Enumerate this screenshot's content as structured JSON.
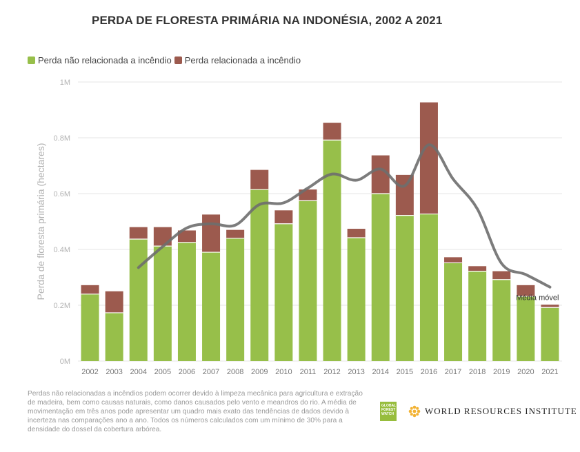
{
  "title": "PERDA DE FLORESTA PRIMÁRIA NA INDONÉSIA, 2002 A 2021",
  "colors": {
    "non_fire": "#97bf4a",
    "fire": "#9c5a4e",
    "moving_avg": "#6e6e6e",
    "grid": "#e6e6e6",
    "axis_text": "#b3b3b3"
  },
  "legend": {
    "non_fire": "Perda não relacionada a incêndio",
    "fire": "Perda relacionada a incêndio"
  },
  "chart_data": {
    "type": "bar",
    "stacked": true,
    "ylabel": "Perda de floresta primária (hectares)",
    "ylim": [
      0,
      1000000
    ],
    "yticks": [
      0,
      200000,
      400000,
      600000,
      800000,
      1000000
    ],
    "ytick_labels": [
      "0M",
      "0.2M",
      "0.4M",
      "0.6M",
      "0.8M",
      "1M"
    ],
    "categories": [
      "2002",
      "2003",
      "2004",
      "2005",
      "2006",
      "2007",
      "2008",
      "2009",
      "2010",
      "2011",
      "2012",
      "2013",
      "2014",
      "2015",
      "2016",
      "2017",
      "2018",
      "2019",
      "2020",
      "2021"
    ],
    "series": [
      {
        "name": "Perda não relacionada a incêndio",
        "values": [
          240000,
          173000,
          437000,
          412000,
          425000,
          390000,
          440000,
          615000,
          492000,
          575000,
          792000,
          442000,
          600000,
          522000,
          527000,
          352000,
          322000,
          292000,
          232000,
          192000
        ]
      },
      {
        "name": "Perda relacionada a incêndio",
        "values": [
          32000,
          77000,
          43000,
          68000,
          43000,
          135000,
          30000,
          70000,
          48000,
          40000,
          62000,
          32000,
          137000,
          145000,
          400000,
          20000,
          18000,
          30000,
          40000,
          10000
        ]
      }
    ],
    "moving_average": {
      "name": "Média móvel",
      "x": [
        "2004",
        "2005",
        "2006",
        "2007",
        "2008",
        "2009",
        "2010",
        "2011",
        "2012",
        "2013",
        "2014",
        "2015",
        "2016",
        "2017",
        "2018",
        "2019",
        "2020",
        "2021"
      ],
      "values": [
        335000,
        410000,
        477000,
        492000,
        487000,
        561000,
        567000,
        620000,
        670000,
        648000,
        688000,
        628000,
        775000,
        652000,
        545000,
        350000,
        310000,
        265000
      ]
    },
    "grid": true,
    "legend_position": "top-left"
  },
  "annotation": "Média móvel",
  "footnote": "Perdas não relacionadas a incêndios podem ocorrer devido à limpeza mecânica para agricultura e extração de madeira, bem como causas naturais, como danos causados pelo vento e meandros do rio. A média de movimentação em três anos pode apresentar um quadro mais exato das tendências de dados devido à incerteza nas comparações ano a ano. Todos os números calculados com um mínimo de 30% para a densidade do dossel da cobertura arbórea.",
  "logos": {
    "gfw_lines": [
      "GLOBAL",
      "FOREST",
      "WATCH"
    ],
    "wri_name": "WORLD RESOURCES INSTITUTE",
    "wri_icon": "wri-flower-icon"
  }
}
